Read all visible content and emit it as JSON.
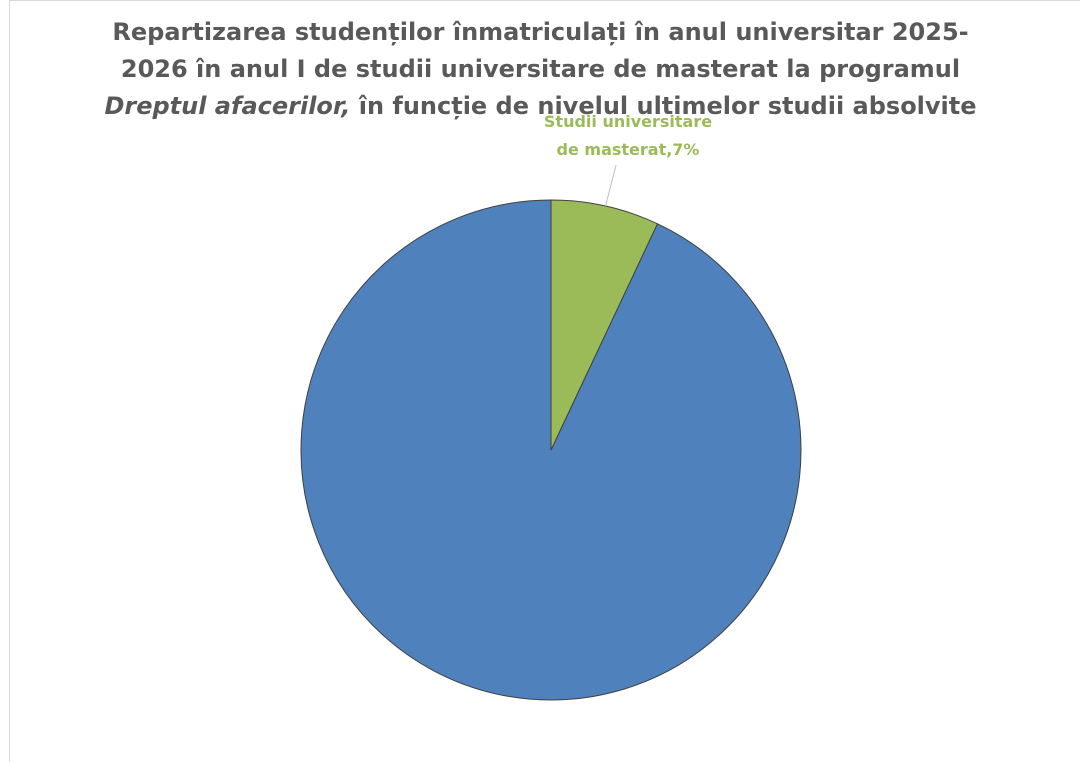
{
  "chart_data": {
    "type": "pie",
    "title": {
      "line1": "Repartizarea studenților înmatriculați în anul universitar 2025-",
      "line2": "2026 în anul I de studii universitare de masterat la programul",
      "line3_italic": "Dreptul afacerilor,",
      "line3_rest": " în funcție de nivelul ultimelor studii absolvite"
    },
    "start_angle_deg": 0,
    "direction": "counterclockwise",
    "slices": [
      {
        "value": 93,
        "color": "#4f81bd",
        "label_lines": []
      },
      {
        "value": 7,
        "color": "#9bbb59",
        "label_lines": [
          "Studii universitare",
          "de masterat,7%"
        ]
      }
    ]
  }
}
